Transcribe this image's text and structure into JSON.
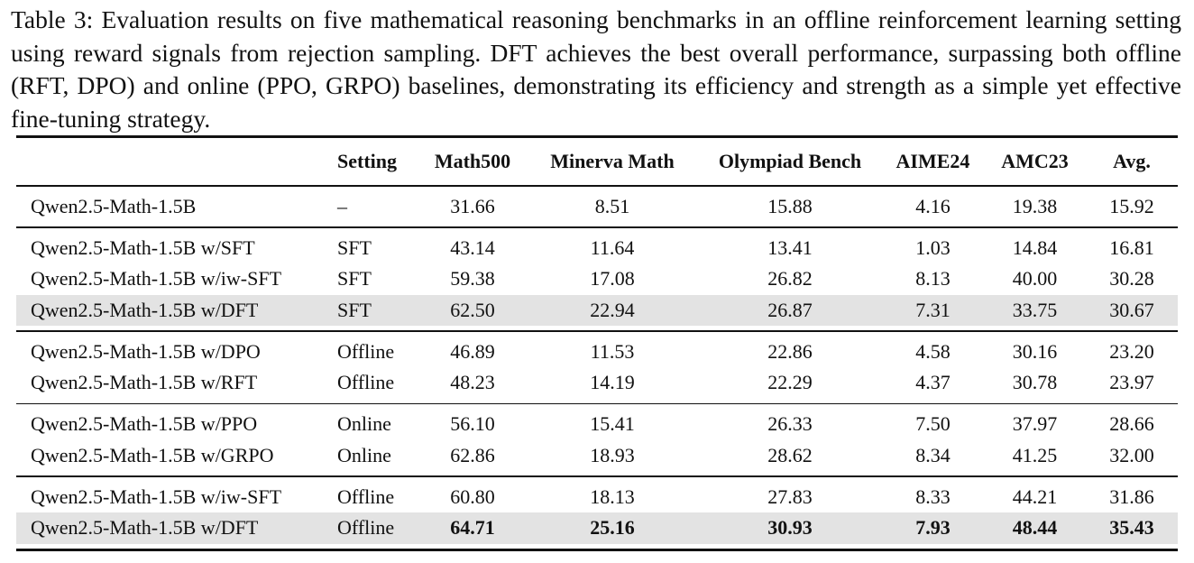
{
  "caption": "Table 3: Evaluation results on five mathematical reasoning benchmarks in an offline reinforcement learning setting using reward signals from rejection sampling. DFT achieves the best overall performance, surpassing both offline (RFT, DPO) and online (PPO, GRPO) baselines, demonstrating its efficiency and strength as a simple yet effective fine-tuning strategy.",
  "headers": [
    "",
    "Setting",
    "Math500",
    "Minerva Math",
    "Olympiad Bench",
    "AIME24",
    "AMC23",
    "Avg."
  ],
  "groups": [
    [
      {
        "model": "Qwen2.5-Math-1.5B",
        "setting": "–",
        "values": [
          "31.66",
          "8.51",
          "15.88",
          "4.16",
          "19.38",
          "15.92"
        ],
        "highlight": false,
        "bold": false
      }
    ],
    [
      {
        "model": "Qwen2.5-Math-1.5B w/SFT",
        "setting": "SFT",
        "values": [
          "43.14",
          "11.64",
          "13.41",
          "1.03",
          "14.84",
          "16.81"
        ],
        "highlight": false,
        "bold": false
      },
      {
        "model": "Qwen2.5-Math-1.5B w/iw-SFT",
        "setting": "SFT",
        "values": [
          "59.38",
          "17.08",
          "26.82",
          "8.13",
          "40.00",
          "30.28"
        ],
        "highlight": false,
        "bold": false
      },
      {
        "model": "Qwen2.5-Math-1.5B w/DFT",
        "setting": "SFT",
        "values": [
          "62.50",
          "22.94",
          "26.87",
          "7.31",
          "33.75",
          "30.67"
        ],
        "highlight": true,
        "bold": false
      }
    ],
    [
      {
        "model": "Qwen2.5-Math-1.5B w/DPO",
        "setting": "Offline",
        "values": [
          "46.89",
          "11.53",
          "22.86",
          "4.58",
          "30.16",
          "23.20"
        ],
        "highlight": false,
        "bold": false
      },
      {
        "model": "Qwen2.5-Math-1.5B w/RFT",
        "setting": "Offline",
        "values": [
          "48.23",
          "14.19",
          "22.29",
          "4.37",
          "30.78",
          "23.97"
        ],
        "highlight": false,
        "bold": false
      }
    ],
    [
      {
        "model": "Qwen2.5-Math-1.5B w/PPO",
        "setting": "Online",
        "values": [
          "56.10",
          "15.41",
          "26.33",
          "7.50",
          "37.97",
          "28.66"
        ],
        "highlight": false,
        "bold": false
      },
      {
        "model": "Qwen2.5-Math-1.5B w/GRPO",
        "setting": "Online",
        "values": [
          "62.86",
          "18.93",
          "28.62",
          "8.34",
          "41.25",
          "32.00"
        ],
        "highlight": false,
        "bold": false
      }
    ],
    [
      {
        "model": "Qwen2.5-Math-1.5B w/iw-SFT",
        "setting": "Offline",
        "values": [
          "60.80",
          "18.13",
          "27.83",
          "8.33",
          "44.21",
          "31.86"
        ],
        "highlight": false,
        "bold": false
      },
      {
        "model": "Qwen2.5-Math-1.5B w/DFT",
        "setting": "Offline",
        "values": [
          "64.71",
          "25.16",
          "30.93",
          "7.93",
          "48.44",
          "35.43"
        ],
        "highlight": true,
        "bold": true
      }
    ]
  ]
}
